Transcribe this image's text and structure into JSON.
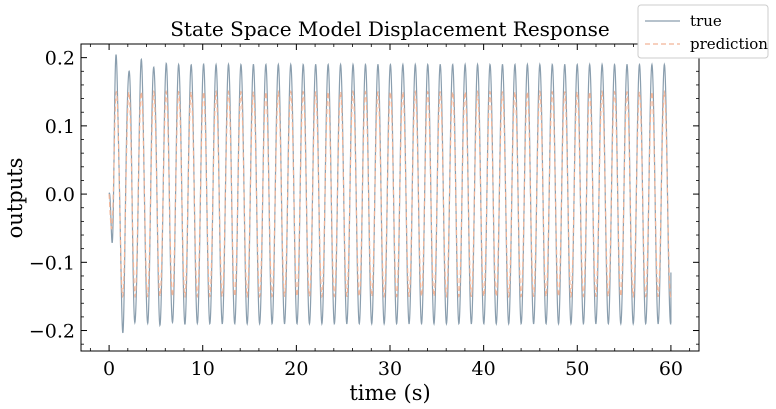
{
  "chart_data": {
    "type": "line",
    "title": "State Space Model Displacement Response",
    "xlabel": "time (s)",
    "ylabel": "outputs",
    "xlim": [
      -3,
      63
    ],
    "ylim": [
      -0.23,
      0.22
    ],
    "xticks": [
      0,
      10,
      20,
      30,
      40,
      50,
      60
    ],
    "xtick_labels": [
      "0",
      "10",
      "20",
      "30",
      "40",
      "50",
      "60"
    ],
    "yticks": [
      -0.2,
      -0.1,
      0.0,
      0.1,
      0.2
    ],
    "ytick_labels": [
      "−0.2",
      "−0.1",
      "0.0",
      "0.1",
      "0.2"
    ],
    "grid": false,
    "legend_position": "top-right",
    "series": [
      {
        "name": "true",
        "color": "#8a9eae",
        "dash": "solid",
        "x_range": [
          0,
          60
        ],
        "sample_points": [
          [
            0.0,
            0.0
          ],
          [
            0.3,
            -0.1
          ],
          [
            0.5,
            -0.14
          ],
          [
            0.7,
            0.17
          ],
          [
            0.8,
            0.197
          ],
          [
            1.3,
            -0.21
          ],
          [
            1.8,
            0.11
          ],
          [
            2.2,
            -0.17
          ],
          [
            2.7,
            0.18
          ],
          [
            3.3,
            -0.18
          ],
          [
            4.0,
            0.19
          ],
          [
            4.6,
            -0.15
          ],
          [
            5.3,
            0.19
          ],
          [
            6.0,
            -0.19
          ],
          [
            10.0,
            0.19
          ],
          [
            20.0,
            -0.18
          ],
          [
            30.0,
            0.19
          ],
          [
            40.0,
            -0.185
          ],
          [
            50.0,
            0.185
          ],
          [
            59.4,
            -0.185
          ],
          [
            60.0,
            0.18
          ],
          [
            60.0,
            -0.115
          ]
        ],
        "dominant_period_s": 1.33,
        "envelope": [
          -0.19,
          0.19
        ]
      },
      {
        "name": "prediction",
        "color": "#f2b598",
        "dash": "dashed",
        "x_range": [
          0,
          60
        ],
        "sample_points": [
          [
            0.0,
            0.0
          ],
          [
            0.5,
            -0.09
          ],
          [
            0.8,
            0.145
          ],
          [
            1.3,
            -0.15
          ],
          [
            2.0,
            0.15
          ],
          [
            3.0,
            -0.15
          ],
          [
            10.0,
            0.145
          ],
          [
            20.0,
            -0.145
          ],
          [
            30.0,
            0.145
          ],
          [
            40.0,
            -0.145
          ],
          [
            50.0,
            0.145
          ],
          [
            60.0,
            0.14
          ]
        ],
        "dominant_period_s": 1.33,
        "envelope": [
          -0.15,
          0.15
        ]
      }
    ]
  }
}
